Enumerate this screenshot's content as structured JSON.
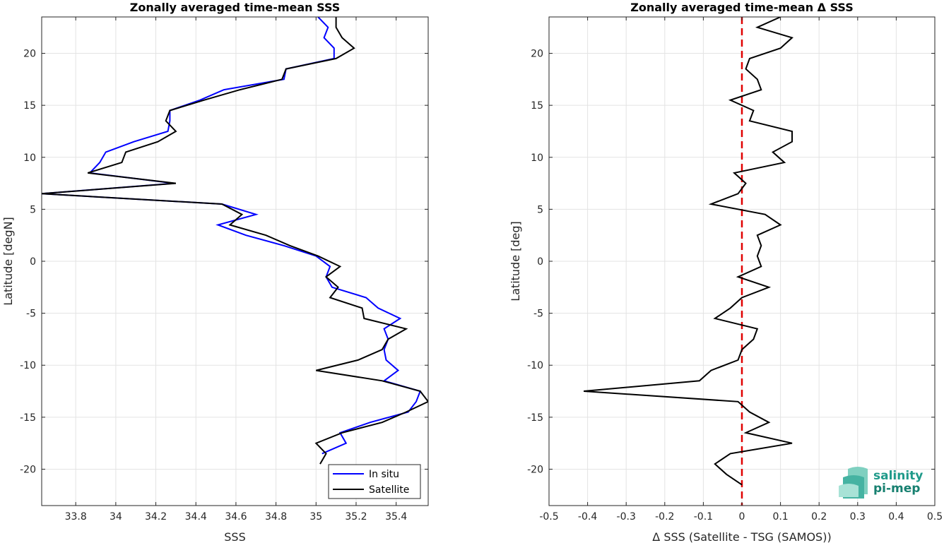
{
  "chart_data": [
    {
      "type": "line",
      "title": "Zonally averaged time-mean SSS",
      "xlabel": "SSS",
      "ylabel": "Latitude [degN]",
      "xlim": [
        33.63,
        35.56
      ],
      "ylim": [
        -23.5,
        23.5
      ],
      "xticks": [
        33.8,
        34,
        34.2,
        34.4,
        34.6,
        34.8,
        35,
        35.2,
        35.4
      ],
      "yticks": [
        -20,
        -15,
        -10,
        -5,
        0,
        5,
        10,
        15,
        20
      ],
      "grid": true,
      "legend_position": "bottom-right",
      "series": [
        {
          "name": "In situ",
          "color": "#0000ff",
          "x": [
            35.01,
            35.06,
            35.04,
            35.09,
            35.09,
            34.85,
            34.84,
            34.54,
            34.42,
            34.27,
            34.27,
            34.26,
            34.09,
            33.95,
            33.92,
            33.87,
            34.29,
            33.63,
            34.53,
            34.7,
            34.51,
            34.65,
            34.84,
            35.0,
            35.07,
            35.05,
            35.08,
            35.25,
            35.31,
            35.42,
            35.34,
            35.36,
            35.34,
            35.35,
            35.41,
            35.34,
            35.52,
            35.5,
            35.46,
            35.27,
            35.12,
            35.15,
            35.03
          ],
          "y": [
            23.5,
            22.5,
            21.5,
            20.5,
            19.5,
            18.5,
            17.5,
            16.5,
            15.5,
            14.5,
            13.5,
            12.5,
            11.5,
            10.5,
            9.5,
            8.5,
            7.5,
            6.5,
            5.5,
            4.5,
            3.5,
            2.5,
            1.5,
            0.5,
            -0.5,
            -1.5,
            -2.5,
            -3.5,
            -4.5,
            -5.5,
            -6.5,
            -7.5,
            -8.5,
            -9.5,
            -10.5,
            -11.5,
            -12.5,
            -13.5,
            -14.5,
            -15.5,
            -16.5,
            -17.5,
            -18.5
          ]
        },
        {
          "name": "Satellite",
          "color": "#000000",
          "x": [
            35.1,
            35.1,
            35.13,
            35.19,
            35.1,
            34.85,
            34.83,
            34.62,
            34.44,
            34.27,
            34.25,
            34.3,
            34.21,
            34.05,
            34.03,
            33.86,
            34.3,
            33.63,
            34.53,
            34.63,
            34.57,
            34.75,
            34.87,
            35.01,
            35.12,
            35.05,
            35.11,
            35.07,
            35.23,
            35.24,
            35.45,
            35.36,
            35.33,
            35.21,
            35.0,
            35.33,
            35.52,
            35.56,
            35.45,
            35.33,
            35.13,
            35.0,
            35.05,
            35.02
          ],
          "y": [
            23.5,
            22.5,
            21.5,
            20.5,
            19.5,
            18.5,
            17.5,
            16.5,
            15.5,
            14.5,
            13.5,
            12.5,
            11.5,
            10.5,
            9.5,
            8.5,
            7.5,
            6.5,
            5.5,
            4.5,
            3.5,
            2.5,
            1.5,
            0.5,
            -0.5,
            -1.5,
            -2.5,
            -3.5,
            -4.5,
            -5.5,
            -6.5,
            -7.5,
            -8.5,
            -9.5,
            -10.5,
            -11.5,
            -12.5,
            -13.5,
            -14.5,
            -15.5,
            -16.5,
            -17.5,
            -18.5,
            -19.5
          ]
        }
      ]
    },
    {
      "type": "line",
      "title": "Zonally averaged time-mean Δ SSS",
      "xlabel": "Δ SSS (Satellite - TSG (SAMOS))",
      "ylabel": "Latitude [deg]",
      "xlim": [
        -0.5,
        0.5
      ],
      "ylim": [
        -23.5,
        23.5
      ],
      "xticks": [
        -0.5,
        -0.4,
        -0.3,
        -0.2,
        -0.1,
        0,
        0.1,
        0.2,
        0.3,
        0.4,
        0.5
      ],
      "yticks": [
        -20,
        -15,
        -10,
        -5,
        0,
        5,
        10,
        15,
        20
      ],
      "grid": true,
      "reference_line": {
        "x": 0,
        "color": "#e00000",
        "style": "dashed"
      },
      "series": [
        {
          "color": "#000000",
          "x": [
            0.1,
            0.04,
            0.13,
            0.1,
            0.02,
            0.01,
            0.04,
            0.05,
            -0.03,
            0.03,
            0.02,
            0.13,
            0.13,
            0.08,
            0.11,
            -0.02,
            0.01,
            -0.01,
            -0.08,
            0.06,
            0.1,
            0.04,
            0.05,
            0.04,
            0.05,
            -0.01,
            0.07,
            0.0,
            -0.03,
            -0.07,
            0.04,
            0.03,
            0.0,
            -0.01,
            -0.08,
            -0.11,
            -0.41,
            -0.01,
            0.02,
            0.07,
            0.01,
            0.13,
            -0.03,
            -0.07,
            -0.04,
            0.0
          ],
          "y": [
            23.5,
            22.5,
            21.5,
            20.5,
            19.5,
            18.5,
            17.5,
            16.5,
            15.5,
            14.5,
            13.5,
            12.5,
            11.5,
            10.5,
            9.5,
            8.5,
            7.5,
            6.5,
            5.5,
            4.5,
            3.5,
            2.5,
            1.5,
            0.5,
            -0.5,
            -1.5,
            -2.5,
            -3.5,
            -4.5,
            -5.5,
            -6.5,
            -7.5,
            -8.5,
            -9.5,
            -10.5,
            -11.5,
            -12.5,
            -13.5,
            -14.5,
            -15.5,
            -16.5,
            -17.5,
            -18.5,
            -19.5,
            -20.5,
            -21.5
          ]
        }
      ]
    }
  ],
  "logo": {
    "line1": "salinity",
    "line2": "pi-mep"
  }
}
